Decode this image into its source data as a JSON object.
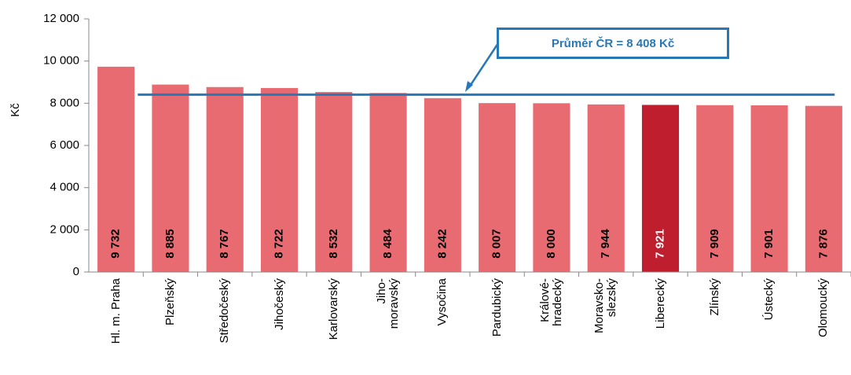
{
  "chart_data": {
    "type": "bar",
    "ylabel": "Kč",
    "categories": [
      "Hl. m. Praha",
      "Plzeňský",
      "Středočeský",
      "Jihočeský",
      "Karlovarský",
      "Jiho-\nmoravský",
      "Vysočina",
      "Pardubický",
      "Králové-\nhradecký",
      "Moravsko-\nslezský",
      "Liberecký",
      "Zlínský",
      "Ústecký",
      "Olomoucký"
    ],
    "values": [
      9732,
      8885,
      8767,
      8722,
      8532,
      8484,
      8242,
      8007,
      8000,
      7944,
      7921,
      7909,
      7901,
      7876
    ],
    "value_labels": [
      "9 732",
      "8 885",
      "8 767",
      "8 722",
      "8 532",
      "8 484",
      "8 242",
      "8 007",
      "8 000",
      "7 944",
      "7 921",
      "7 909",
      "7 901",
      "7 876"
    ],
    "colors": [
      "#e96b72",
      "#e96b72",
      "#e96b72",
      "#e96b72",
      "#e96b72",
      "#e96b72",
      "#e96b72",
      "#e96b72",
      "#e96b72",
      "#e96b72",
      "#be1e2d",
      "#e96b72",
      "#e96b72",
      "#e96b72"
    ],
    "ylim": [
      0,
      12000
    ],
    "yticks": [
      0,
      {
        "value": 2000,
        "label": "2 000"
      },
      {
        "value": 4000,
        "label": "4 000"
      },
      {
        "value": 6000,
        "label": "6 000"
      },
      {
        "value": 8000,
        "label": "8 000"
      },
      {
        "value": 10000,
        "label": "10 000"
      },
      {
        "value": 12000,
        "label": "12 000"
      }
    ],
    "reference_line": {
      "value": 8408,
      "label": "Průměr ČR = 8 408 Kč",
      "color": "#2878b8"
    },
    "grid": false
  }
}
